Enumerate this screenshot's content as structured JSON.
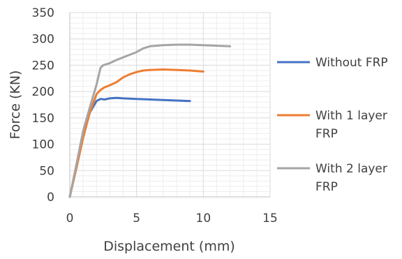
{
  "chart_data": {
    "type": "line",
    "title": "",
    "xlabel": "Displacement (mm)",
    "ylabel": "Force (KN)",
    "xlim": [
      0,
      15
    ],
    "ylim": [
      0,
      350
    ],
    "x_ticks": [
      0,
      5,
      10,
      15
    ],
    "y_ticks": [
      0,
      50,
      100,
      150,
      200,
      250,
      300,
      350
    ],
    "x_tick_labels": [
      "0",
      "5",
      "10",
      "15"
    ],
    "y_tick_labels": [
      "0",
      "50",
      "100",
      "150",
      "200",
      "250",
      "300",
      "350"
    ],
    "grid": "major and minor gridlines",
    "legend_position": "right",
    "series": [
      {
        "name": "Without FRP",
        "legend_lines": [
          "Without FRP"
        ],
        "color": "#4472C4",
        "points": [
          [
            0,
            0
          ],
          [
            0.5,
            60
          ],
          [
            1,
            120
          ],
          [
            1.5,
            160
          ],
          [
            2,
            182
          ],
          [
            2.3,
            186
          ],
          [
            2.6,
            185
          ],
          [
            3,
            187
          ],
          [
            3.5,
            188
          ],
          [
            4,
            187
          ],
          [
            5,
            186
          ],
          [
            6,
            185
          ],
          [
            7,
            184
          ],
          [
            8,
            183
          ],
          [
            9,
            182
          ]
        ]
      },
      {
        "name": "With 1 layer FRP",
        "legend_lines": [
          "With 1 layer",
          "FRP"
        ],
        "color": "#ED7D31",
        "points": [
          [
            0,
            0
          ],
          [
            0.5,
            55
          ],
          [
            1,
            112
          ],
          [
            1.5,
            160
          ],
          [
            2,
            195
          ],
          [
            2.3,
            203
          ],
          [
            2.6,
            208
          ],
          [
            3,
            212
          ],
          [
            3.5,
            218
          ],
          [
            4,
            227
          ],
          [
            4.5,
            233
          ],
          [
            5,
            237
          ],
          [
            5.5,
            240
          ],
          [
            6,
            241
          ],
          [
            7,
            242
          ],
          [
            8,
            241
          ],
          [
            9,
            240
          ],
          [
            10,
            238
          ]
        ]
      },
      {
        "name": "With 2 layer FRP",
        "legend_lines": [
          "With 2 layer",
          "FRP"
        ],
        "color": "#A5A5A5",
        "points": [
          [
            0,
            0
          ],
          [
            0.5,
            62
          ],
          [
            1,
            125
          ],
          [
            1.5,
            170
          ],
          [
            2,
            213
          ],
          [
            2.3,
            245
          ],
          [
            2.5,
            250
          ],
          [
            3,
            254
          ],
          [
            3.5,
            260
          ],
          [
            4,
            265
          ],
          [
            5,
            275
          ],
          [
            5.5,
            282
          ],
          [
            6,
            286
          ],
          [
            7,
            288
          ],
          [
            8,
            289
          ],
          [
            9,
            289
          ],
          [
            10,
            288
          ],
          [
            11,
            287
          ],
          [
            12,
            286
          ]
        ]
      }
    ]
  }
}
